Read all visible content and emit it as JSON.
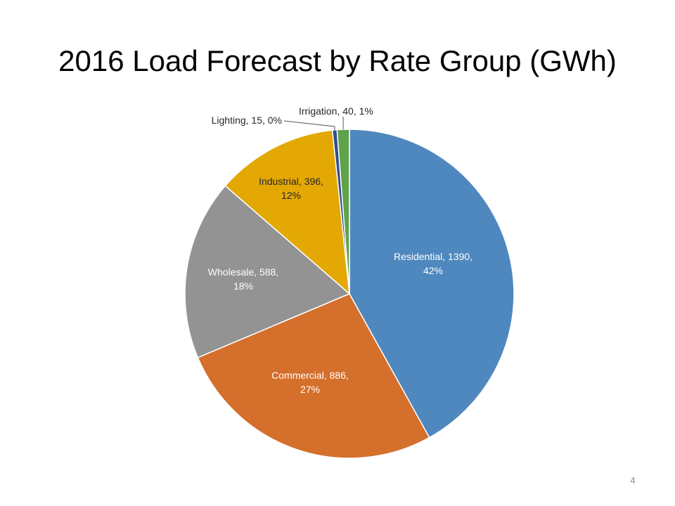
{
  "slide": {
    "title": "2016 Load Forecast by Rate Group (GWh)",
    "page_number": "4"
  },
  "chart_data": {
    "type": "pie",
    "title": "2016 Load Forecast by Rate Group (GWh)",
    "slices": [
      {
        "name": "Residential",
        "value": 1390,
        "percent": "42%",
        "color": "#4F88BE",
        "label_lines": [
          "Residential, 1390,",
          "42%"
        ],
        "label_color": "#ffffff",
        "label_inside": true
      },
      {
        "name": "Commercial",
        "value": 886,
        "percent": "27%",
        "color": "#D46F2C",
        "label_lines": [
          "Commercial, 886,",
          "27%"
        ],
        "label_color": "#ffffff",
        "label_inside": true
      },
      {
        "name": "Wholesale",
        "value": 588,
        "percent": "18%",
        "color": "#939393",
        "label_lines": [
          "Wholesale, 588,",
          "18%"
        ],
        "label_color": "#ffffff",
        "label_inside": true
      },
      {
        "name": "Industrial",
        "value": 396,
        "percent": "12%",
        "color": "#E3A804",
        "label_lines": [
          "Industrial, 396,",
          "12%"
        ],
        "label_color": "#262626",
        "label_inside": true
      },
      {
        "name": "Lighting",
        "value": 15,
        "percent": "0%",
        "color": "#2F4F8E",
        "label_lines": [
          "Lighting, 15, 0%"
        ],
        "label_color": "#262626",
        "label_inside": false
      },
      {
        "name": "Irrigation",
        "value": 40,
        "percent": "1%",
        "color": "#5FA24A",
        "label_lines": [
          "Irrigation, 40, 1%"
        ],
        "label_color": "#262626",
        "label_inside": false
      }
    ],
    "start_angle_deg": 0,
    "direction": "clockwise",
    "legend": "none"
  }
}
